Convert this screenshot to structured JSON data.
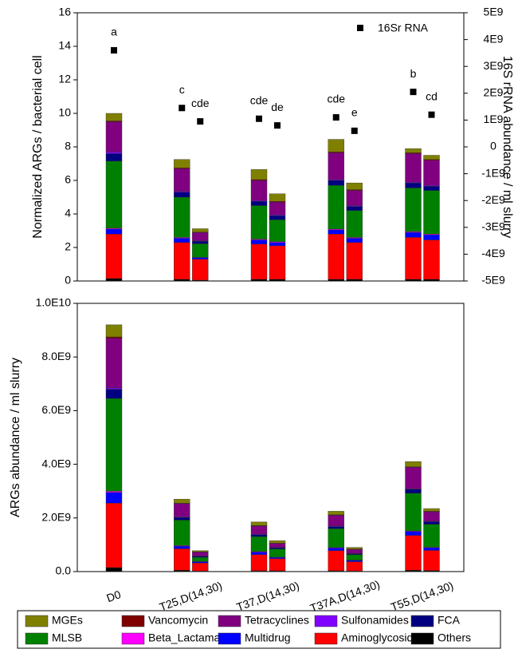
{
  "chart_data": [
    {
      "type": "stacked_bar",
      "ylabel": "Normalized ARGs / bacterial cell",
      "y2label": "16S rRNA abundance / ml slurry",
      "ylim": [
        0,
        16
      ],
      "yticks": [
        0,
        2,
        4,
        6,
        8,
        10,
        12,
        14,
        16
      ],
      "y2lim": [
        -5000000000.0,
        5000000000.0
      ],
      "y2ticks": [
        {
          "value": -5000000000.0,
          "label": "-5E9"
        },
        {
          "value": -4000000000.0,
          "label": "-4E9"
        },
        {
          "value": -3000000000.0,
          "label": "-3E9"
        },
        {
          "value": -2000000000.0,
          "label": "-2E9"
        },
        {
          "value": -1000000000.0,
          "label": "-1E9"
        },
        0,
        {
          "value": 1000000000.0,
          "label": "1E9"
        },
        {
          "value": 2000000000.0,
          "label": "2E9"
        },
        {
          "value": 3000000000.0,
          "label": "3E9"
        },
        {
          "value": 4000000000.0,
          "label": "4E9"
        },
        {
          "value": 5000000000.0,
          "label": "5E9"
        }
      ],
      "series": [
        {
          "color": "#808000",
          "values": [
            0.45,
            0.5,
            0.2,
            0.6,
            0.45,
            0.75,
            0.4,
            0.25,
            0.25
          ]
        },
        {
          "color": "#800000",
          "values": [
            0.05,
            0.05,
            0.02,
            0.05,
            0.05,
            0.05,
            0.05,
            0.05,
            0.05
          ]
        },
        {
          "color": "#800080",
          "values": [
            1.8,
            1.35,
            0.5,
            1.2,
            0.75,
            1.6,
            0.9,
            1.7,
            1.5
          ]
        },
        {
          "color": "#8000ff",
          "values": [
            0.1,
            0.05,
            0.03,
            0.05,
            0.05,
            0.05,
            0.05,
            0.05,
            0.05
          ]
        },
        {
          "color": "#000080",
          "values": [
            0.45,
            0.3,
            0.15,
            0.25,
            0.25,
            0.3,
            0.25,
            0.3,
            0.25
          ]
        },
        {
          "color": "#008000",
          "values": [
            4.0,
            2.4,
            0.8,
            2.0,
            1.3,
            2.6,
            1.6,
            2.6,
            2.6
          ]
        },
        {
          "color": "#ff00ff",
          "values": [
            0.05,
            0.05,
            0.02,
            0.05,
            0.05,
            0.05,
            0.05,
            0.05,
            0.05
          ]
        },
        {
          "color": "#0000ff",
          "values": [
            0.3,
            0.25,
            0.1,
            0.25,
            0.2,
            0.25,
            0.25,
            0.3,
            0.3
          ]
        },
        {
          "color": "#ff0000",
          "values": [
            2.65,
            2.2,
            1.25,
            2.1,
            2.0,
            2.7,
            2.2,
            2.5,
            2.35
          ]
        },
        {
          "color": "#000000",
          "values": [
            0.15,
            0.1,
            0.05,
            0.1,
            0.1,
            0.1,
            0.1,
            0.1,
            0.1
          ]
        },
        {
          "type": "scatter",
          "axis": "y2",
          "name": "16Sr RNA",
          "color": "#000000",
          "values": [
            3600000000.0,
            1450000000.0,
            950000000.0,
            1050000000.0,
            800000000.0,
            1100000000.0,
            600000000.0,
            2050000000.0,
            1200000000.0
          ],
          "point_labels": [
            "a",
            "c",
            "cde",
            "cde",
            "de",
            "cde",
            "e",
            "b",
            "cd"
          ]
        }
      ]
    },
    {
      "type": "stacked_bar",
      "ylabel": "ARGs abundance / ml slurry",
      "categories": [
        "D0",
        "T25,D(14,30)",
        null,
        "T37,D(14,30)",
        null,
        "T37A,D(14,30)",
        null,
        "T55,D(14,30)",
        null
      ],
      "ylim": [
        0,
        10000000000.0
      ],
      "yticks": [
        {
          "value": 0,
          "label": "0.0"
        },
        {
          "value": 2000000000.0,
          "label": "2.0E9"
        },
        {
          "value": 4000000000.0,
          "label": "4.0E9"
        },
        {
          "value": 6000000000.0,
          "label": "6.0E9"
        },
        {
          "value": 8000000000.0,
          "label": "8.0E9"
        },
        {
          "value": 10000000000.0,
          "label": "1.0E10"
        }
      ],
      "series": [
        {
          "name": "MGEs",
          "color": "#808000",
          "values": [
            450000000.0,
            150000000.0,
            40000000.0,
            130000000.0,
            90000000.0,
            130000000.0,
            60000000.0,
            190000000.0,
            100000000.0
          ]
        },
        {
          "name": "Vancomycin",
          "color": "#800000",
          "values": [
            50000000.0,
            10000000.0,
            10000000.0,
            20000000.0,
            10000000.0,
            20000000.0,
            10000000.0,
            20000000.0,
            20000000.0
          ]
        },
        {
          "name": "Tetracyclines",
          "color": "#800080",
          "values": [
            1850000000.0,
            500000000.0,
            150000000.0,
            300000000.0,
            150000000.0,
            400000000.0,
            150000000.0,
            800000000.0,
            350000000.0
          ]
        },
        {
          "name": "Sulfonamides",
          "color": "#8000ff",
          "values": [
            50000000.0,
            20000000.0,
            10000000.0,
            20000000.0,
            10000000.0,
            20000000.0,
            10000000.0,
            20000000.0,
            20000000.0
          ]
        },
        {
          "name": "FCA",
          "color": "#000080",
          "values": [
            350000000.0,
            100000000.0,
            40000000.0,
            80000000.0,
            50000000.0,
            80000000.0,
            40000000.0,
            150000000.0,
            100000000.0
          ]
        },
        {
          "name": "MLSB",
          "color": "#008000",
          "values": [
            3450000000.0,
            950000000.0,
            150000000.0,
            550000000.0,
            300000000.0,
            700000000.0,
            200000000.0,
            1400000000.0,
            850000000.0
          ]
        },
        {
          "name": "Beta_Lactamas",
          "color": "#ff00ff",
          "values": [
            50000000.0,
            20000000.0,
            10000000.0,
            20000000.0,
            10000000.0,
            20000000.0,
            10000000.0,
            20000000.0,
            20000000.0
          ]
        },
        {
          "name": "Multidrug",
          "color": "#0000ff",
          "values": [
            400000000.0,
            100000000.0,
            50000000.0,
            100000000.0,
            50000000.0,
            100000000.0,
            50000000.0,
            150000000.0,
            100000000.0
          ]
        },
        {
          "name": "Aminoglycosides",
          "color": "#ff0000",
          "values": [
            2400000000.0,
            800000000.0,
            300000000.0,
            600000000.0,
            450000000.0,
            750000000.0,
            350000000.0,
            1300000000.0,
            750000000.0
          ]
        },
        {
          "name": "Others",
          "color": "#000000",
          "values": [
            150000000.0,
            50000000.0,
            20000000.0,
            30000000.0,
            30000000.0,
            30000000.0,
            20000000.0,
            50000000.0,
            40000000.0
          ]
        }
      ]
    }
  ]
}
